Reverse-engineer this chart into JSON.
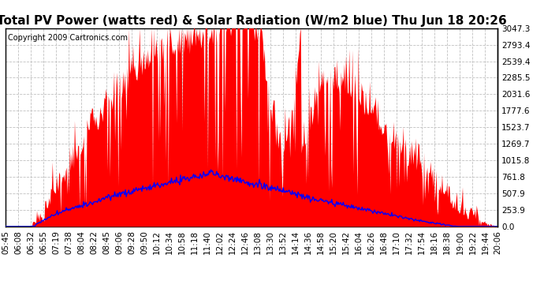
{
  "title": "Total PV Power (watts red) & Solar Radiation (W/m2 blue) Thu Jun 18 20:26",
  "copyright": "Copyright 2009 Cartronics.com",
  "y_max": 3047.3,
  "y_ticks": [
    0.0,
    253.9,
    507.9,
    761.8,
    1015.8,
    1269.7,
    1523.7,
    1777.6,
    2031.6,
    2285.5,
    2539.4,
    2793.4,
    3047.3
  ],
  "x_labels": [
    "05:45",
    "06:08",
    "06:32",
    "06:55",
    "07:19",
    "07:38",
    "08:04",
    "08:22",
    "08:45",
    "09:06",
    "09:28",
    "09:50",
    "10:12",
    "10:34",
    "10:58",
    "11:18",
    "11:40",
    "12:02",
    "12:24",
    "12:46",
    "13:08",
    "13:30",
    "13:52",
    "14:14",
    "14:36",
    "14:58",
    "15:20",
    "15:42",
    "16:04",
    "16:26",
    "16:48",
    "17:10",
    "17:32",
    "17:54",
    "18:16",
    "18:38",
    "19:00",
    "19:22",
    "19:44",
    "20:06"
  ],
  "bg_color": "#ffffff",
  "grid_color": "#c0c0c0",
  "red_color": "#ff0000",
  "blue_color": "#0000ff",
  "title_fontsize": 11,
  "copyright_fontsize": 7,
  "tick_fontsize": 7.5
}
